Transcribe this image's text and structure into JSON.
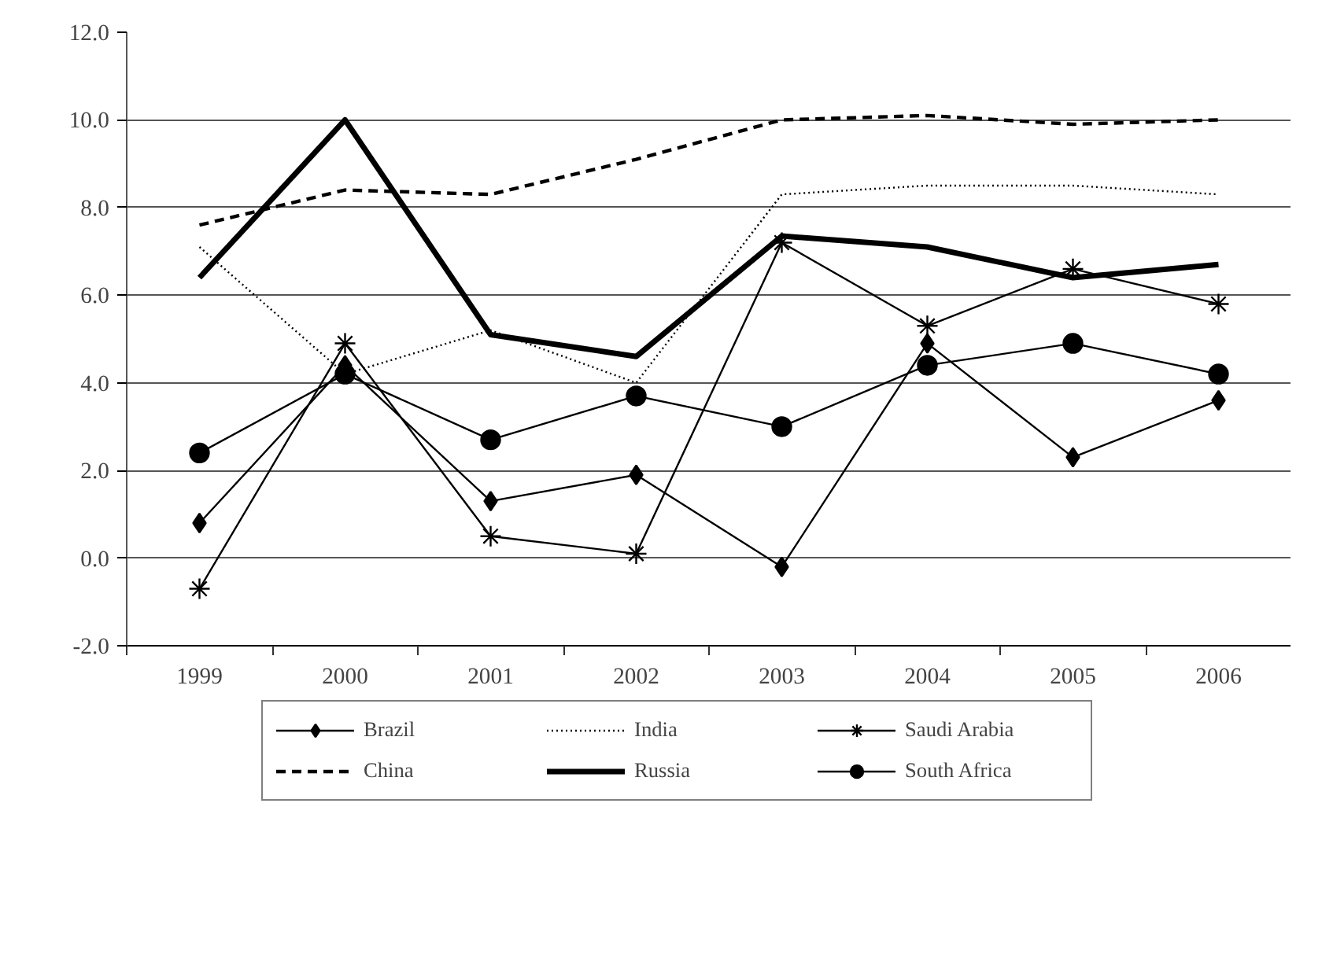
{
  "chart_data": {
    "type": "line",
    "categories": [
      "1999",
      "2000",
      "2001",
      "2002",
      "2003",
      "2004",
      "2005",
      "2006"
    ],
    "series": [
      {
        "name": "Brazil",
        "color": "#000000",
        "marker": "diamond",
        "line_style": "solid",
        "values": [
          0.8,
          4.4,
          1.3,
          1.9,
          -0.2,
          4.9,
          2.3,
          3.6
        ]
      },
      {
        "name": "China",
        "color": "#000000",
        "marker": "none",
        "line_style": "dashed",
        "values": [
          7.6,
          8.4,
          8.3,
          9.1,
          10.0,
          10.1,
          9.9,
          10.0
        ]
      },
      {
        "name": "India",
        "color": "#000000",
        "marker": "none",
        "line_style": "dotted",
        "values": [
          7.1,
          4.2,
          5.2,
          4.0,
          8.3,
          8.5,
          8.5,
          8.3
        ]
      },
      {
        "name": "Russia",
        "color": "#000000",
        "marker": "none",
        "line_style": "solid",
        "values": [
          6.4,
          10.0,
          5.1,
          4.6,
          7.35,
          7.1,
          6.4,
          6.7
        ]
      },
      {
        "name": "Saudi Arabia",
        "color": "#000000",
        "marker": "cross",
        "line_style": "solid",
        "values": [
          -0.7,
          4.9,
          0.5,
          0.1,
          7.2,
          5.3,
          6.6,
          5.8
        ]
      },
      {
        "name": "South Africa",
        "color": "#000000",
        "marker": "circle",
        "line_style": "solid",
        "values": [
          2.4,
          4.2,
          2.7,
          3.7,
          3.0,
          4.4,
          4.9,
          4.2
        ]
      }
    ],
    "ylim": [
      -2,
      12
    ],
    "yticks": [
      {
        "value": -2,
        "label": "-2.0"
      },
      {
        "value": 0,
        "label": "0.0"
      },
      {
        "value": 2,
        "label": "2.0"
      },
      {
        "value": 4,
        "label": "4.0"
      },
      {
        "value": 6,
        "label": "6.0"
      },
      {
        "value": 8,
        "label": "8.0"
      },
      {
        "value": 10,
        "label": "10.0"
      },
      {
        "value": 12,
        "label": "12.0"
      }
    ],
    "grid": "y",
    "legend": "bottom"
  }
}
